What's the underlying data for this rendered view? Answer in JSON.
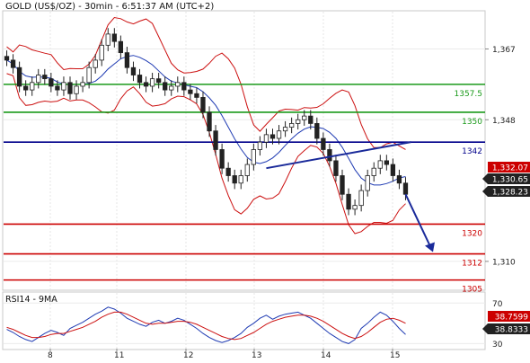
{
  "chart_data": [
    {
      "type": "candlestick",
      "title": "GOLD (US$/OZ) - 30min - 6:51:37 AM (UTC+2)",
      "y_ticks": [
        "1,367",
        "1,348",
        "1,310"
      ],
      "y_tick_values": [
        1367,
        1348,
        1310
      ],
      "x_ticks": [
        "8",
        "11",
        "12",
        "13",
        "14",
        "15"
      ],
      "ylim": [
        1302.5,
        1377
      ],
      "grid": true,
      "levels": [
        {
          "label": "1357.5",
          "value": 1357.5,
          "color": "#1a9a1a"
        },
        {
          "label": "1350",
          "value": 1350,
          "color": "#1a9a1a"
        },
        {
          "label": "1342",
          "value": 1342,
          "color": "#00008b"
        },
        {
          "label": "1320",
          "value": 1320,
          "color": "#cc0000"
        },
        {
          "label": "1312",
          "value": 1312,
          "color": "#cc0000"
        },
        {
          "label": "1305",
          "value": 1305,
          "color": "#cc0000"
        }
      ],
      "price_tags": [
        {
          "label": "1,332.07",
          "value": 1332.07,
          "color": "#cc0000"
        },
        {
          "label": "1,330.65",
          "value": 1330.65,
          "color": "#222222"
        },
        {
          "label": "1,328.23",
          "value": 1328.23,
          "color": "#222222"
        }
      ],
      "series": [
        {
          "values": [
            1364,
            1362,
            1357,
            1356,
            1358,
            1360,
            1359,
            1357,
            1356,
            1358,
            1355,
            1357,
            1358,
            1362,
            1364,
            1368,
            1371,
            1369,
            1366,
            1362,
            1360,
            1358,
            1357,
            1359,
            1358,
            1356,
            1357,
            1358,
            1356,
            1355,
            1354,
            1350,
            1345,
            1340,
            1335,
            1333,
            1331,
            1333,
            1336,
            1340,
            1342,
            1344,
            1343,
            1345,
            1346,
            1347,
            1348,
            1349,
            1347,
            1343,
            1340,
            1337,
            1333,
            1328,
            1324,
            1325,
            1329,
            1333,
            1335,
            1337,
            1336,
            1333,
            1331,
            1328
          ]
        }
      ]
    },
    {
      "type": "line",
      "title": "RSI14 - 9MA",
      "y_ticks": [
        "70",
        "30"
      ],
      "y_tick_values": [
        70,
        30
      ],
      "ylim": [
        25,
        80
      ],
      "price_tags": [
        {
          "label": "38.7599",
          "value": 38.7599,
          "color": "#cc0000"
        },
        {
          "label": "38.8333",
          "value": 38.8333,
          "color": "#222222"
        }
      ],
      "series": [
        {
          "values": [
            44,
            41,
            37,
            34,
            32,
            36,
            40,
            43,
            41,
            38,
            45,
            48,
            51,
            55,
            59,
            62,
            66,
            64,
            60,
            55,
            52,
            49,
            47,
            51,
            53,
            50,
            52,
            55,
            53,
            49,
            45,
            40,
            36,
            33,
            31,
            33,
            36,
            40,
            46,
            50,
            55,
            58,
            54,
            57,
            59,
            60,
            61,
            58,
            55,
            50,
            45,
            40,
            36,
            32,
            30,
            34,
            45,
            50,
            56,
            61,
            58,
            52,
            45,
            39
          ]
        },
        {
          "values": [
            46,
            44,
            41,
            38,
            36,
            36,
            37,
            39,
            40,
            40,
            42,
            44,
            46,
            49,
            52,
            56,
            59,
            61,
            61,
            59,
            56,
            53,
            50,
            49,
            50,
            50,
            51,
            52,
            52,
            51,
            49,
            46,
            43,
            40,
            37,
            35,
            34,
            35,
            38,
            41,
            45,
            49,
            52,
            54,
            56,
            57,
            58,
            58,
            57,
            55,
            52,
            48,
            44,
            40,
            37,
            35,
            37,
            41,
            46,
            51,
            54,
            55,
            53,
            50
          ]
        }
      ]
    }
  ]
}
